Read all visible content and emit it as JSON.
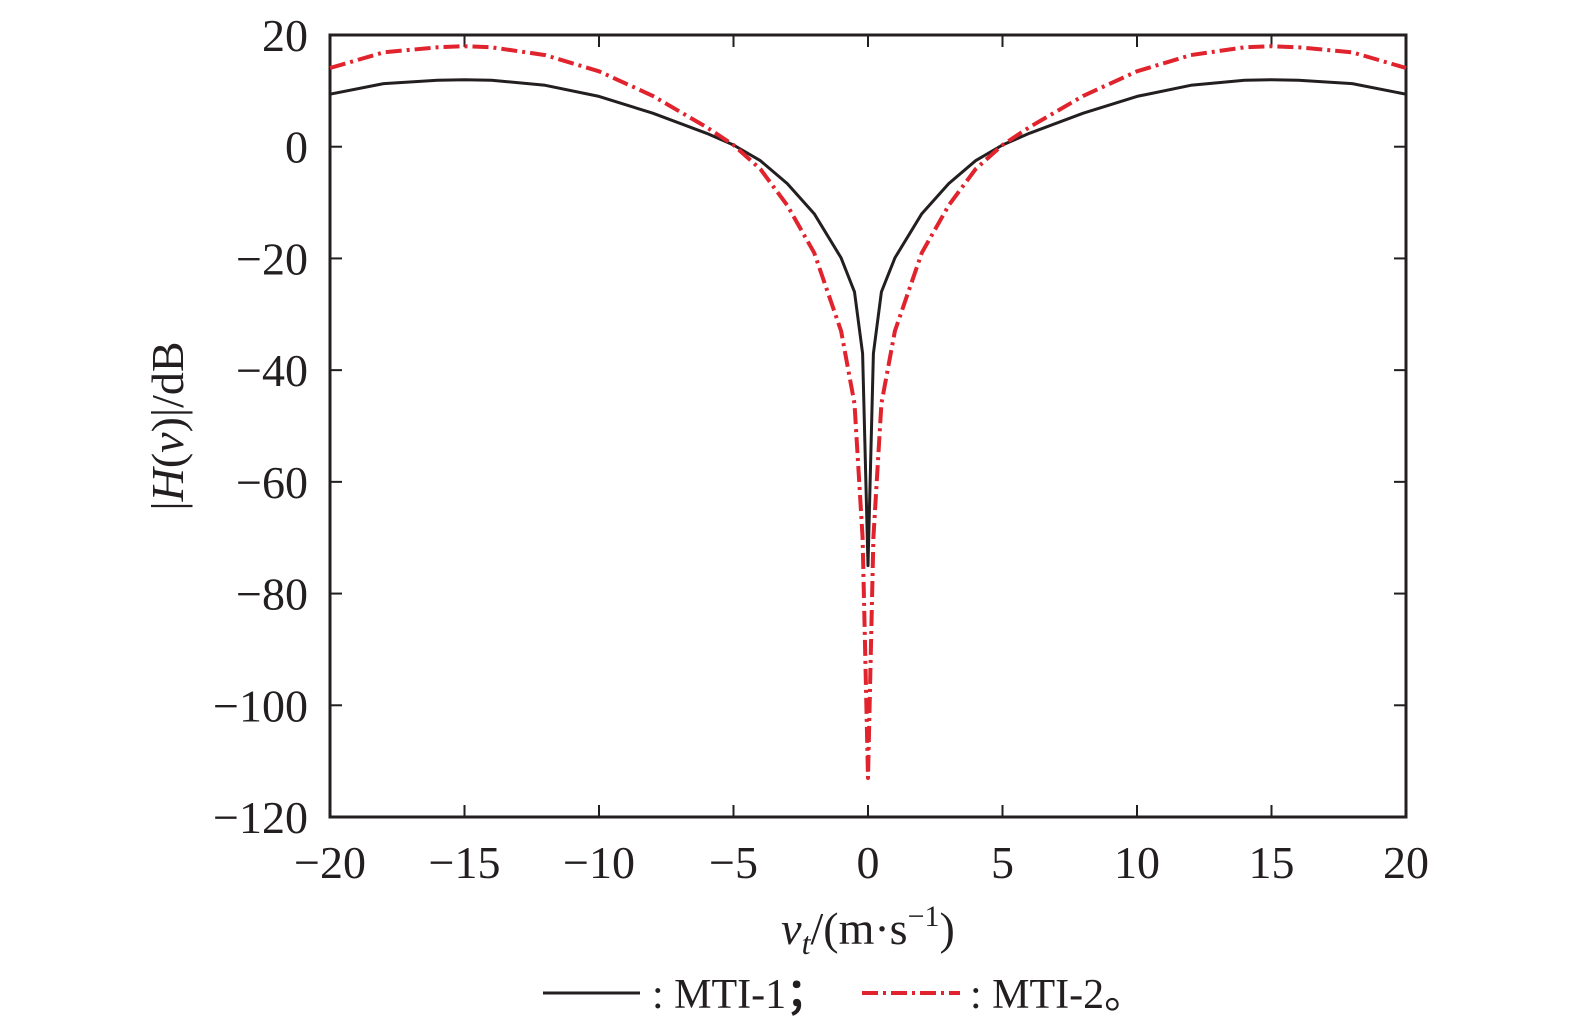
{
  "chart_data": {
    "type": "line",
    "xlabel_var": "v",
    "xlabel_sub": "t",
    "xlabel_unit_open": "/(m·s",
    "xlabel_sup": "−1",
    "xlabel_close": ")",
    "ylabel_open": "|",
    "ylabel_H": "H",
    "ylabel_paren_open": "(",
    "ylabel_v": "v",
    "ylabel_rest": ")|/dB",
    "xlim": [
      -20,
      20
    ],
    "ylim": [
      -120,
      20
    ],
    "xticks": [
      -20,
      -15,
      -10,
      -5,
      0,
      5,
      10,
      15,
      20
    ],
    "yticks": [
      20,
      0,
      -20,
      -40,
      -60,
      -80,
      -100,
      -120
    ],
    "xtick_labels": [
      "−20",
      "−15",
      "−10",
      "−5",
      "0",
      "5",
      "10",
      "15",
      "20"
    ],
    "ytick_labels": [
      "20",
      "0",
      "−20",
      "−40",
      "−60",
      "−80",
      "−100",
      "−120"
    ],
    "grid": false,
    "legend_position": "bottom",
    "series": [
      {
        "name": "MTI-1",
        "legend_prefix": ": ",
        "legend_suffix": "；",
        "color": "#231f20",
        "style": "solid",
        "x": [
          -20,
          -18,
          -16,
          -15,
          -14,
          -12,
          -10,
          -8,
          -6,
          -5,
          -4,
          -3,
          -2,
          -1,
          -0.5,
          -0.2,
          0,
          0.2,
          0.5,
          1,
          2,
          3,
          4,
          5,
          6,
          8,
          10,
          12,
          14,
          15,
          16,
          18,
          20
        ],
        "y": [
          9.4,
          11.3,
          11.9,
          12.0,
          11.9,
          11.0,
          9.0,
          6.0,
          2.4,
          0.3,
          -2.5,
          -6.6,
          -12.0,
          -19.9,
          -26.0,
          -37.0,
          -75.0,
          -37.0,
          -26.0,
          -19.9,
          -12.0,
          -6.6,
          -2.5,
          0.3,
          2.4,
          6.0,
          9.0,
          11.0,
          11.9,
          12.0,
          11.9,
          11.3,
          9.4
        ]
      },
      {
        "name": "MTI-2",
        "legend_prefix": ": ",
        "legend_suffix": "。",
        "color": "#e0232d",
        "style": "dashdot",
        "x": [
          -20,
          -18,
          -16,
          -15,
          -14,
          -12,
          -10,
          -8,
          -6,
          -5,
          -4,
          -3,
          -2,
          -1,
          -0.5,
          -0.2,
          0,
          0.2,
          0.5,
          1,
          2,
          3,
          4,
          5,
          6,
          8,
          10,
          12,
          14,
          15,
          16,
          18,
          20
        ],
        "y": [
          14.1,
          16.9,
          17.8,
          18.0,
          17.8,
          16.4,
          13.5,
          9.1,
          3.5,
          0.3,
          -4.0,
          -10.5,
          -19.0,
          -33.0,
          -46.0,
          -70.0,
          -113.0,
          -70.0,
          -46.0,
          -33.0,
          -19.0,
          -10.5,
          -4.0,
          0.3,
          3.5,
          9.1,
          13.5,
          16.4,
          17.8,
          18.0,
          17.8,
          16.9,
          14.1
        ]
      }
    ]
  }
}
